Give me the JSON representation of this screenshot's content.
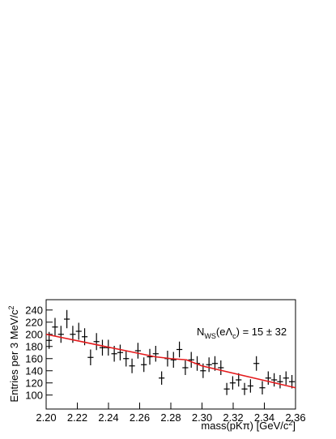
{
  "chart_data": {
    "type": "errorbar",
    "y_label": [
      "Entries per 3 MeV/c",
      "2"
    ],
    "x_label": [
      "mass(pKπ) [GeV/c",
      "2",
      "]"
    ],
    "annotation": [
      "N",
      "WS",
      "(eΛ",
      "c",
      ") = 15 ± 32"
    ],
    "xlim": [
      2.2,
      2.36
    ],
    "xticks": [
      {
        "value": 2.2,
        "label": "2.20"
      },
      {
        "value": 2.22,
        "label": "2.22"
      },
      {
        "value": 2.24,
        "label": "2.24"
      },
      {
        "value": 2.26,
        "label": "2.26"
      },
      {
        "value": 2.28,
        "label": "2.28"
      },
      {
        "value": 2.3,
        "label": "2.30"
      },
      {
        "value": 2.32,
        "label": "2.32"
      },
      {
        "value": 2.34,
        "label": "2.34"
      },
      {
        "value": 2.36,
        "label": "2.36"
      }
    ],
    "ylim": [
      77,
      257
    ],
    "yticks": [
      100,
      120,
      140,
      160,
      180,
      200,
      220,
      240
    ],
    "series": [
      {
        "color": "#000000",
        "x": [
          2.2019,
          2.2057,
          2.2095,
          2.2133,
          2.2171,
          2.2209,
          2.2247,
          2.2285,
          2.2323,
          2.2361,
          2.2399,
          2.2437,
          2.2475,
          2.2513,
          2.2551,
          2.2589,
          2.2627,
          2.2665,
          2.2703,
          2.2741,
          2.2779,
          2.2817,
          2.2855,
          2.2893,
          2.2931,
          2.2969,
          2.3007,
          2.3045,
          2.3083,
          2.3121,
          2.3159,
          2.3197,
          2.3235,
          2.3273,
          2.3311,
          2.3349,
          2.3387,
          2.3425,
          2.3463,
          2.3501,
          2.3539,
          2.3577
        ],
        "values": [
          190,
          212,
          200,
          225,
          200,
          205,
          196,
          162,
          188,
          178,
          178,
          168,
          170,
          160,
          148,
          173,
          150,
          163,
          168,
          128,
          160,
          158,
          175,
          145,
          158,
          152,
          140,
          150,
          152,
          145,
          110,
          120,
          125,
          110,
          115,
          152,
          112,
          128,
          125,
          122,
          128,
          122
        ],
        "errors": [
          14,
          15,
          14,
          15,
          14,
          14,
          14,
          13,
          14,
          13,
          13,
          13,
          13,
          13,
          12,
          13,
          12,
          13,
          13,
          11,
          13,
          13,
          13,
          12,
          13,
          12,
          12,
          12,
          12,
          12,
          10,
          11,
          11,
          10,
          11,
          12,
          11,
          11,
          11,
          11,
          11,
          11
        ]
      },
      {
        "type": "line",
        "color": "#e41a1c",
        "x": [
          2.2,
          2.27,
          2.28,
          2.29,
          2.3,
          2.36
        ],
        "values": [
          200,
          163,
          160,
          158,
          148,
          112
        ]
      }
    ]
  }
}
